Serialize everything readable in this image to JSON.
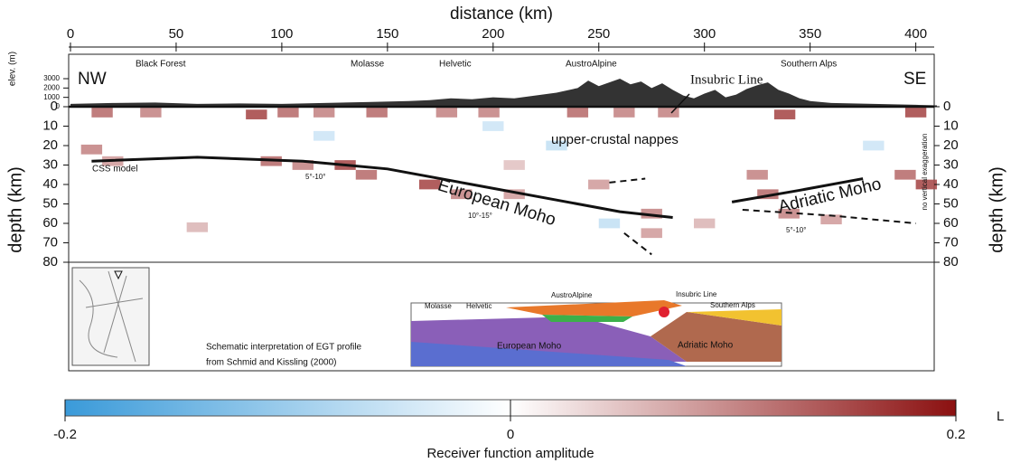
{
  "chart_data": {
    "type": "section",
    "xlabel": "distance (km)",
    "xlim": [
      0,
      410
    ],
    "xticks": [
      0,
      50,
      100,
      150,
      200,
      250,
      300,
      350,
      400
    ],
    "ylabel": "depth (km)",
    "ylim": [
      0,
      80
    ],
    "yticks": [
      0,
      10,
      20,
      30,
      40,
      50,
      60,
      70,
      80
    ],
    "elev_label": "elev. (m)",
    "elev_lim": [
      0,
      3000
    ],
    "elev_ticks": [
      0,
      1000,
      2000,
      3000
    ],
    "elevation": {
      "x": [
        0,
        20,
        40,
        60,
        80,
        100,
        120,
        140,
        160,
        170,
        180,
        190,
        200,
        210,
        220,
        230,
        240,
        245,
        250,
        255,
        260,
        265,
        270,
        275,
        280,
        285,
        290,
        295,
        300,
        305,
        310,
        315,
        320,
        325,
        330,
        335,
        340,
        345,
        350,
        360,
        380,
        400,
        410
      ],
      "values": [
        300,
        400,
        450,
        300,
        350,
        300,
        400,
        500,
        600,
        700,
        900,
        800,
        1000,
        900,
        1200,
        1500,
        2000,
        2800,
        2200,
        2600,
        3000,
        2400,
        2700,
        2000,
        2500,
        1800,
        1200,
        900,
        1400,
        1800,
        1000,
        1300,
        1900,
        2300,
        2600,
        1800,
        1400,
        900,
        600,
        400,
        300,
        200,
        150
      ]
    },
    "cells": {
      "x": [
        15,
        38,
        88,
        103,
        120,
        145,
        178,
        198,
        240,
        262,
        283,
        338,
        400,
        10,
        20,
        95,
        110,
        130,
        140,
        170,
        185,
        210,
        250,
        275,
        325,
        330,
        340,
        395,
        405,
        360,
        300,
        275,
        60,
        210,
        120,
        200,
        230,
        380,
        255
      ],
      "y": [
        3,
        3,
        4,
        3,
        3,
        3,
        3,
        3,
        3,
        3,
        3,
        4,
        3,
        22,
        28,
        28,
        30,
        30,
        35,
        40,
        45,
        45,
        40,
        55,
        35,
        45,
        55,
        35,
        40,
        58,
        60,
        65,
        62,
        30,
        15,
        10,
        20,
        20,
        60
      ],
      "values": [
        0.12,
        0.1,
        0.15,
        0.12,
        0.1,
        0.12,
        0.1,
        0.1,
        0.12,
        0.1,
        0.1,
        0.15,
        0.15,
        0.1,
        0.08,
        0.12,
        0.1,
        0.15,
        0.12,
        0.15,
        0.1,
        0.08,
        0.08,
        0.1,
        0.1,
        0.12,
        0.1,
        0.12,
        0.15,
        0.08,
        0.06,
        0.08,
        0.06,
        0.05,
        -0.05,
        -0.05,
        -0.06,
        -0.05,
        -0.06
      ]
    },
    "clim": [
      -0.2,
      0.2
    ],
    "cticks": [
      -0.2,
      0,
      0.2
    ],
    "clabel": "Receiver function amplitude",
    "colors": [
      "#3a9ad9",
      "#ffffff",
      "#8b1010"
    ],
    "lines": [
      {
        "x": [
          10,
          60,
          110,
          150,
          190,
          230,
          260,
          285
        ],
        "y": [
          28,
          26,
          28,
          32,
          40,
          48,
          54,
          57
        ],
        "dash": false
      },
      {
        "x": [
          313,
          345,
          375
        ],
        "y": [
          49,
          43,
          37
        ],
        "dash": false
      },
      {
        "x": [
          318,
          360,
          400
        ],
        "y": [
          53,
          56,
          60
        ],
        "dash": true
      },
      {
        "x": [
          255,
          272
        ],
        "y": [
          39,
          37
        ],
        "dash": true
      },
      {
        "x": [
          262,
          275
        ],
        "y": [
          65,
          76
        ],
        "dash": true
      }
    ],
    "annotations": {
      "nw": "NW",
      "se": "SE",
      "black_forest": "Black Forest",
      "molasse": "Molasse",
      "helvetic": "Helvetic",
      "austroalpine": "AustroAlpine",
      "insubric": "Insubric Line",
      "southern_alps": "Southern Alps",
      "nappes": "upper-crustal nappes",
      "css": "CSS model",
      "european_moho": "European Moho",
      "adriatic_moho": "Adriatic Moho",
      "dip1": "5°-10°",
      "dip2": "10°-15°",
      "dip3": "5°-10°",
      "no_exag": "no vertical exaggeration"
    }
  },
  "inset": {
    "caption": [
      "Schematic interpretation of EGT profile",
      "from Schmid and Kissling (2000)"
    ],
    "labels": [
      "Molasse",
      "Helvetic",
      "AustroAlpine",
      "Insubric Line",
      "Southern Alps",
      "European Moho",
      "Adriatic Moho"
    ]
  },
  "fragment": "L"
}
